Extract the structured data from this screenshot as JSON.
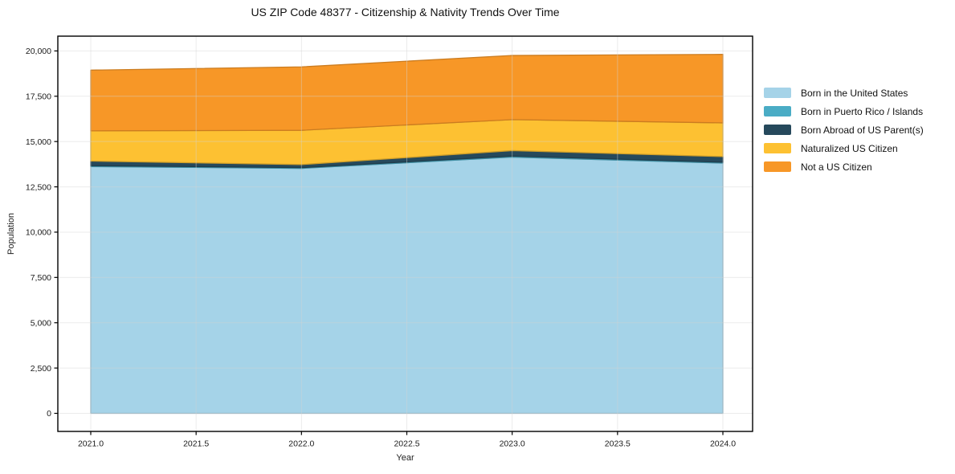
{
  "chart_data": {
    "type": "area",
    "stacked": true,
    "title": "US ZIP Code 48377 - Citizenship & Nativity Trends Over Time",
    "xlabel": "Year",
    "ylabel": "Population",
    "x": [
      2021,
      2022,
      2023,
      2024
    ],
    "xticks": [
      2021.0,
      2021.5,
      2022.0,
      2022.5,
      2023.0,
      2023.5,
      2024.0
    ],
    "xtick_labels": [
      "2021.0",
      "2021.5",
      "2022.0",
      "2022.5",
      "2023.0",
      "2023.5",
      "2024.0"
    ],
    "yticks": [
      0,
      2500,
      5000,
      7500,
      10000,
      12500,
      15000,
      17500,
      20000
    ],
    "ytick_labels": [
      "0",
      "2,500",
      "5,000",
      "7,500",
      "10,000",
      "12,500",
      "15,000",
      "17,500",
      "20,000"
    ],
    "ylim": [
      0,
      20000
    ],
    "grid": true,
    "legend_position": "right",
    "series": [
      {
        "name": "Born in the United States",
        "color": "#a5d3e8",
        "values": [
          13620,
          13520,
          14140,
          13810
        ]
      },
      {
        "name": "Born in Puerto Rico / Islands",
        "color": "#4aacc5",
        "values": [
          50,
          40,
          60,
          50
        ]
      },
      {
        "name": "Born Abroad of US Parent(s)",
        "color": "#26495c",
        "values": [
          250,
          170,
          300,
          310
        ]
      },
      {
        "name": "Naturalized US Citizen",
        "color": "#fdc132",
        "values": [
          1670,
          1890,
          1710,
          1860
        ]
      },
      {
        "name": "Not a US Citizen",
        "color": "#f79727",
        "values": [
          3350,
          3500,
          3540,
          3780
        ]
      }
    ]
  }
}
